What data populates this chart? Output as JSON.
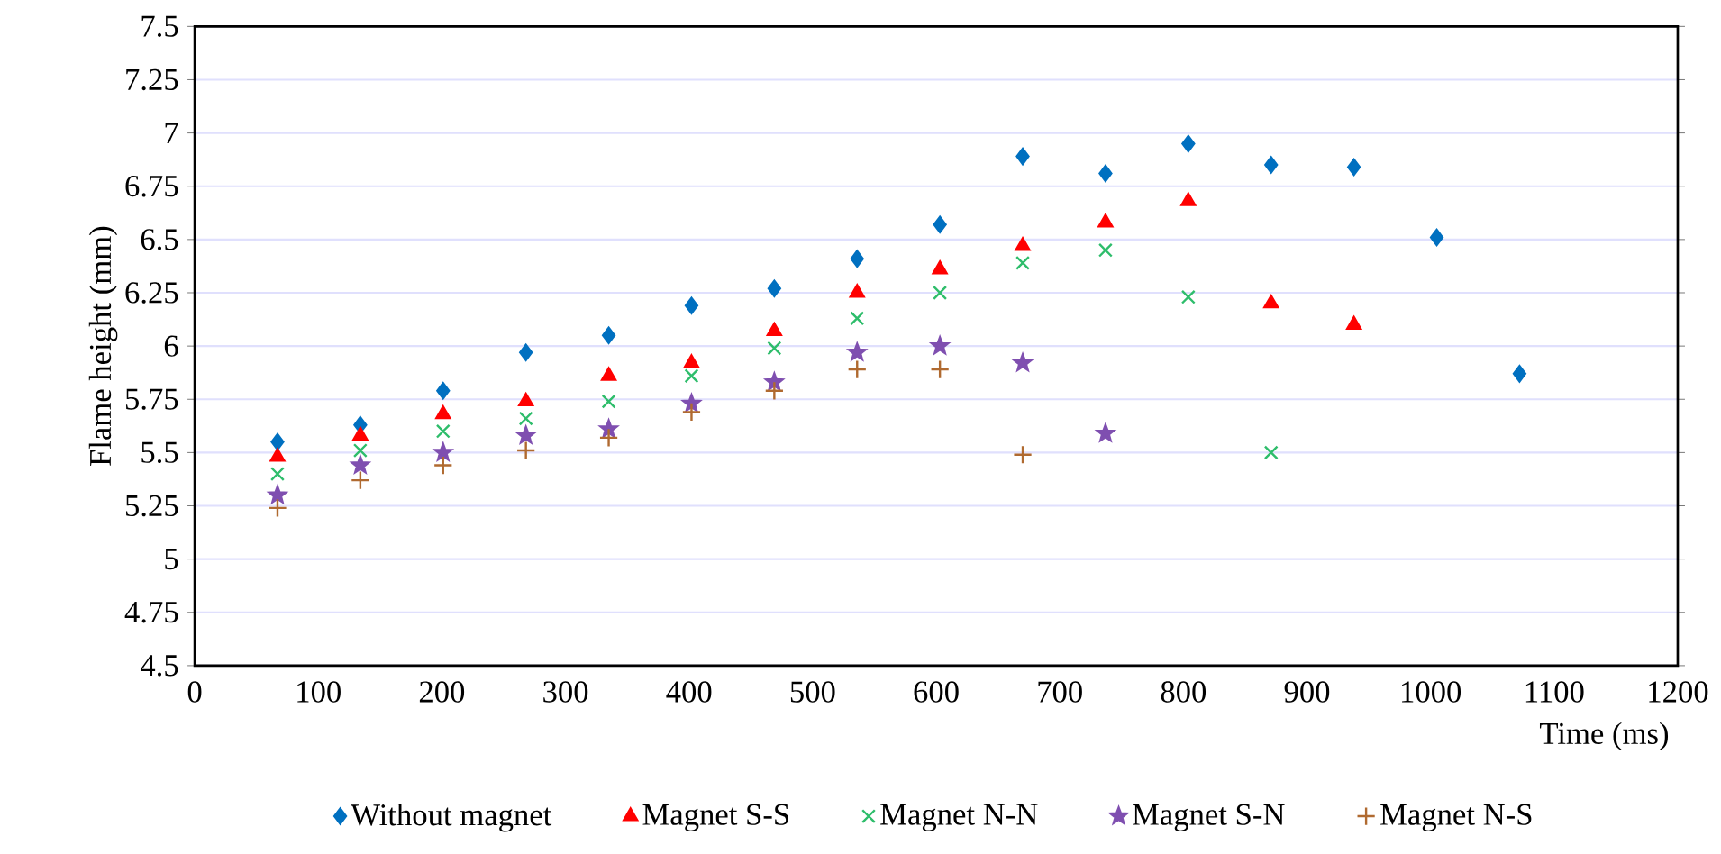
{
  "chart_data": {
    "type": "scatter",
    "xlabel": "Time (ms)",
    "ylabel": "Flame height (mm)",
    "x": [
      67,
      134,
      201,
      268,
      335,
      402,
      469,
      536,
      603,
      670,
      737,
      804,
      871,
      938,
      1005,
      1072
    ],
    "series": [
      {
        "name": "Without magnet",
        "color": "#0070c0",
        "marker": "diamond",
        "values": [
          5.55,
          5.63,
          5.79,
          5.97,
          6.05,
          6.19,
          6.27,
          6.41,
          6.57,
          6.89,
          6.81,
          6.95,
          6.85,
          6.84,
          6.51,
          5.87
        ]
      },
      {
        "name": "Magnet S-S",
        "color": "#ff0000",
        "marker": "triangle",
        "values": [
          5.48,
          5.58,
          5.68,
          5.74,
          5.86,
          5.92,
          6.07,
          6.25,
          6.36,
          6.47,
          6.58,
          6.68,
          6.2,
          6.1,
          null,
          null
        ]
      },
      {
        "name": "Magnet N-N",
        "color": "#2ebd6b",
        "marker": "cross",
        "values": [
          5.4,
          5.51,
          5.6,
          5.66,
          5.74,
          5.86,
          5.99,
          6.13,
          6.25,
          6.39,
          6.45,
          6.23,
          5.5,
          null,
          null,
          null
        ]
      },
      {
        "name": "Magnet S-N",
        "color": "#7f4fb0",
        "marker": "star",
        "values": [
          5.3,
          5.44,
          5.5,
          5.58,
          5.61,
          5.73,
          5.83,
          5.97,
          6.0,
          5.92,
          5.59,
          null,
          null,
          null,
          null,
          null
        ]
      },
      {
        "name": "Magnet N-S",
        "color": "#b06a30",
        "marker": "plus",
        "values": [
          5.24,
          5.37,
          5.44,
          5.51,
          5.57,
          5.69,
          5.79,
          5.89,
          5.89,
          5.49,
          null,
          null,
          null,
          null,
          null,
          null
        ]
      }
    ],
    "xlim": [
      0,
      1200
    ],
    "xticks": [
      0,
      100,
      200,
      300,
      400,
      500,
      600,
      700,
      800,
      900,
      1000,
      1100,
      1200
    ],
    "ylim": [
      4.5,
      7.5
    ],
    "yticks": [
      4.5,
      4.75,
      5,
      5.25,
      5.5,
      5.75,
      6,
      6.25,
      6.5,
      6.75,
      7,
      7.25,
      7.5
    ],
    "grid": "y",
    "legend": "bottom"
  }
}
